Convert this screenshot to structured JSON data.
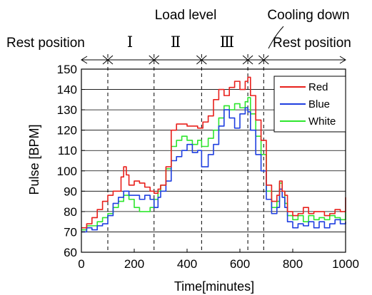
{
  "chart_data": {
    "type": "line",
    "xlabel": "Time[minutes]",
    "ylabel": "Pulse [BPM]",
    "xlim": [
      0,
      1000
    ],
    "ylim": [
      60,
      150
    ],
    "x_ticks": [
      0,
      200,
      400,
      600,
      800,
      1000
    ],
    "y_ticks": [
      60,
      70,
      80,
      90,
      100,
      110,
      120,
      130,
      140,
      150
    ],
    "grid": "horizontal",
    "legend_position": "top-right",
    "annotations": {
      "top_label": "Load level",
      "cooling_label": "Cooling down",
      "rest_left": "Rest position",
      "rest_right": "Rest position",
      "phases": [
        "Ⅰ",
        "Ⅱ",
        "Ⅲ"
      ]
    },
    "phase_boundaries": [
      100,
      275,
      455,
      630,
      690
    ],
    "series": [
      {
        "name": "Red",
        "color": "#e8201c",
        "x": [
          0,
          20,
          40,
          60,
          80,
          100,
          120,
          140,
          150,
          160,
          170,
          180,
          200,
          220,
          240,
          260,
          275,
          290,
          300,
          320,
          340,
          360,
          380,
          400,
          420,
          440,
          460,
          480,
          500,
          520,
          540,
          560,
          580,
          600,
          620,
          630,
          640,
          660,
          680,
          700,
          720,
          740,
          750,
          760,
          770,
          780,
          800,
          820,
          840,
          860,
          880,
          900,
          920,
          940,
          960,
          980,
          1000
        ],
        "y": [
          72,
          74,
          77,
          81,
          85,
          88,
          90,
          90,
          97,
          102,
          98,
          93,
          95,
          94,
          92,
          90,
          89,
          91,
          93,
          102,
          120,
          123,
          123,
          122,
          122,
          121,
          124,
          127,
          135,
          140,
          137,
          141,
          144,
          140,
          144,
          146,
          137,
          125,
          115,
          93,
          85,
          88,
          95,
          90,
          88,
          80,
          78,
          79,
          82,
          79,
          80,
          80,
          78,
          79,
          81,
          80,
          87
        ]
      },
      {
        "name": "Blue",
        "color": "#1f3fe0",
        "x": [
          0,
          20,
          40,
          60,
          80,
          100,
          120,
          140,
          160,
          180,
          200,
          220,
          240,
          260,
          275,
          290,
          300,
          320,
          340,
          360,
          380,
          400,
          420,
          440,
          455,
          480,
          500,
          520,
          540,
          560,
          580,
          600,
          620,
          630,
          640,
          660,
          680,
          700,
          720,
          740,
          750,
          760,
          770,
          780,
          800,
          820,
          840,
          860,
          880,
          900,
          920,
          940,
          960,
          980,
          1000
        ],
        "y": [
          70,
          72,
          71,
          73,
          74,
          78,
          84,
          87,
          90,
          88,
          88,
          86,
          88,
          86,
          82,
          87,
          90,
          95,
          105,
          107,
          110,
          113,
          109,
          110,
          102,
          108,
          113,
          122,
          130,
          126,
          121,
          128,
          131,
          129,
          120,
          108,
          100,
          86,
          79,
          82,
          91,
          87,
          82,
          75,
          72,
          74,
          73,
          75,
          72,
          75,
          72,
          74,
          76,
          74,
          75
        ]
      },
      {
        "name": "White",
        "color": "#2ee62e",
        "x": [
          0,
          20,
          40,
          60,
          80,
          100,
          120,
          140,
          160,
          180,
          200,
          220,
          240,
          260,
          275,
          290,
          300,
          320,
          340,
          360,
          380,
          400,
          420,
          440,
          455,
          480,
          500,
          520,
          540,
          560,
          580,
          600,
          620,
          630,
          640,
          660,
          680,
          700,
          720,
          740,
          750,
          760,
          770,
          780,
          800,
          820,
          840,
          860,
          880,
          900,
          920,
          940,
          960,
          980,
          1000
        ],
        "y": [
          71,
          73,
          73,
          75,
          77,
          79,
          82,
          85,
          88,
          86,
          82,
          80,
          80,
          82,
          86,
          90,
          93,
          101,
          112,
          115,
          117,
          115,
          113,
          115,
          112,
          116,
          120,
          126,
          132,
          130,
          133,
          131,
          134,
          136,
          128,
          117,
          108,
          90,
          82,
          85,
          94,
          90,
          84,
          78,
          76,
          78,
          75,
          78,
          76,
          77,
          76,
          78,
          77,
          76,
          80
        ]
      }
    ]
  }
}
